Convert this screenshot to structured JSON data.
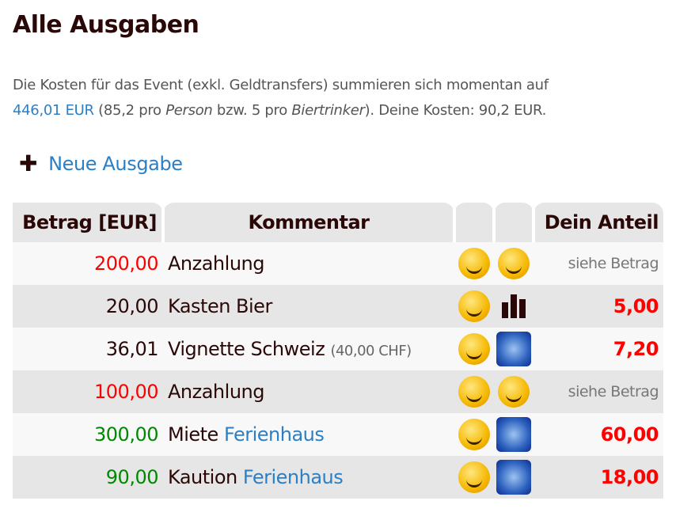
{
  "title": "Alle Ausgaben",
  "intro": {
    "prefix": "Die Kosten für das Event (exkl. Geldtransfers) summieren sich momentan auf",
    "total": "446,01 EUR",
    "p1": " (85,2 pro ",
    "person": "Person",
    "p2": " bzw. 5 pro ",
    "beer": "Biertrinker",
    "p3": "). Deine Kosten: 90,2 EUR."
  },
  "new_expense": "Neue Ausgabe",
  "table": {
    "headers": [
      "Betrag [EUR]",
      "Kommentar",
      "",
      "",
      "Dein Anteil"
    ],
    "rows": [
      {
        "amount": "200,00",
        "amount_color": "#ff0000",
        "comment": "Anzahlung",
        "sub": "",
        "link": "",
        "icon1": "smiley-laughing",
        "icon2": "smiley",
        "share": "siehe Betrag",
        "share_type": "muted"
      },
      {
        "amount": "20,00",
        "amount_color": "#2a0808",
        "comment": "Kasten Bier",
        "sub": "",
        "link": "",
        "icon1": "smiley-teeth",
        "icon2": "bar-chart",
        "share": "5,00",
        "share_type": "red"
      },
      {
        "amount": "36,01",
        "amount_color": "#2a0808",
        "comment": "Vignette Schweiz",
        "sub": "(40,00 CHF)",
        "link": "",
        "icon1": "smiley-laughing",
        "icon2": "photo",
        "share": "7,20",
        "share_type": "red"
      },
      {
        "amount": "100,00",
        "amount_color": "#ff0000",
        "comment": "Anzahlung",
        "sub": "",
        "link": "",
        "icon1": "smiley-laughing",
        "icon2": "smiley",
        "share": "siehe Betrag",
        "share_type": "muted"
      },
      {
        "amount": "300,00",
        "amount_color": "#008800",
        "comment": "Miete",
        "sub": "",
        "link": "Ferienhaus",
        "icon1": "smiley",
        "icon2": "photo",
        "share": "60,00",
        "share_type": "red"
      },
      {
        "amount": "90,00",
        "amount_color": "#008800",
        "comment": "Kaution",
        "sub": "",
        "link": "Ferienhaus",
        "icon1": "smiley",
        "icon2": "photo",
        "share": "18,00",
        "share_type": "red"
      }
    ]
  }
}
